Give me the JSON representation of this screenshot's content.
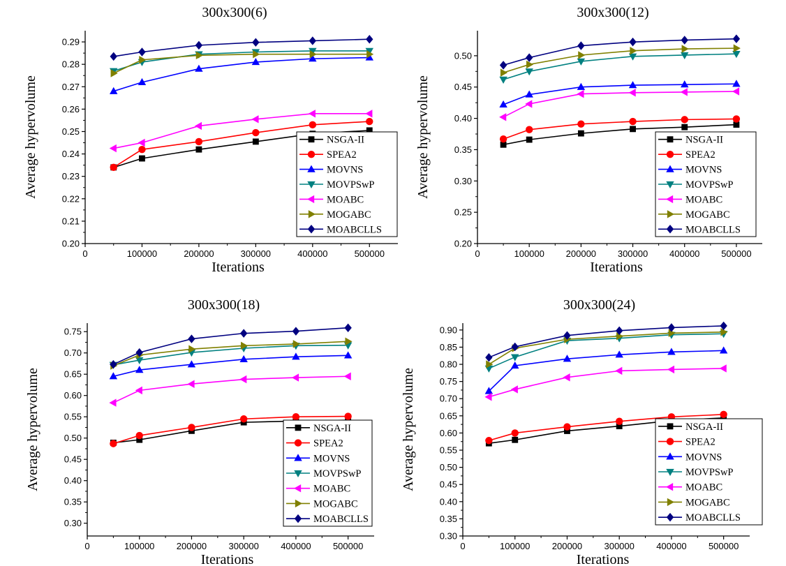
{
  "figure": {
    "title": "",
    "background": "#ffffff"
  },
  "series_styles": [
    {
      "name": "NSGA-II",
      "color": "#000000",
      "marker": "square"
    },
    {
      "name": "SPEA2",
      "color": "#ff0000",
      "marker": "circle"
    },
    {
      "name": "MOVNS",
      "color": "#0000ff",
      "marker": "triangle-up"
    },
    {
      "name": "MOVPSwP",
      "color": "#008080",
      "marker": "triangle-down"
    },
    {
      "name": "MOABC",
      "color": "#ff00ff",
      "marker": "triangle-left"
    },
    {
      "name": "MOGABC",
      "color": "#808000",
      "marker": "triangle-right"
    },
    {
      "name": "MOABCLLS",
      "color": "#000080",
      "marker": "diamond"
    }
  ],
  "chart_data": [
    {
      "type": "line",
      "title": "300x300(6)",
      "xlabel": "Iterations",
      "ylabel": "Average hypervolume",
      "xlim": [
        0,
        550000
      ],
      "ylim": [
        0.2,
        0.295
      ],
      "xticks": [
        0,
        100000,
        200000,
        300000,
        400000,
        500000
      ],
      "yticks": [
        0.2,
        0.21,
        0.22,
        0.23,
        0.24,
        0.25,
        0.26,
        0.27,
        0.28,
        0.29
      ],
      "ydecimals": 2,
      "legend_position": "bottom-right",
      "x": [
        50000,
        100000,
        200000,
        300000,
        400000,
        500000
      ],
      "series": [
        {
          "name": "NSGA-II",
          "values": [
            0.234,
            0.238,
            0.242,
            0.2455,
            0.249,
            0.2505
          ]
        },
        {
          "name": "SPEA2",
          "values": [
            0.234,
            0.242,
            0.2455,
            0.2495,
            0.253,
            0.2545
          ]
        },
        {
          "name": "MOVNS",
          "values": [
            0.268,
            0.272,
            0.278,
            0.281,
            0.2825,
            0.283
          ]
        },
        {
          "name": "MOVPSwP",
          "values": [
            0.277,
            0.281,
            0.2845,
            0.2855,
            0.286,
            0.286
          ]
        },
        {
          "name": "MOABC",
          "values": [
            0.2425,
            0.245,
            0.2525,
            0.2555,
            0.258,
            0.258
          ]
        },
        {
          "name": "MOGABC",
          "values": [
            0.276,
            0.282,
            0.284,
            0.2845,
            0.2845,
            0.2845
          ]
        },
        {
          "name": "MOABCLLS",
          "values": [
            0.2835,
            0.2855,
            0.2885,
            0.2898,
            0.2905,
            0.2912
          ]
        }
      ]
    },
    {
      "type": "line",
      "title": "300x300(12)",
      "xlabel": "Iterations",
      "ylabel": "Average hypervolume",
      "xlim": [
        0,
        550000
      ],
      "ylim": [
        0.2,
        0.54
      ],
      "xticks": [
        0,
        100000,
        200000,
        300000,
        400000,
        500000
      ],
      "yticks": [
        0.2,
        0.25,
        0.3,
        0.35,
        0.4,
        0.45,
        0.5
      ],
      "ydecimals": 2,
      "legend_position": "bottom-right",
      "x": [
        50000,
        100000,
        200000,
        300000,
        400000,
        500000
      ],
      "series": [
        {
          "name": "NSGA-II",
          "values": [
            0.358,
            0.366,
            0.376,
            0.383,
            0.386,
            0.39
          ]
        },
        {
          "name": "SPEA2",
          "values": [
            0.367,
            0.382,
            0.391,
            0.395,
            0.398,
            0.399
          ]
        },
        {
          "name": "MOVNS",
          "values": [
            0.422,
            0.438,
            0.45,
            0.453,
            0.454,
            0.455
          ]
        },
        {
          "name": "MOVPSwP",
          "values": [
            0.462,
            0.475,
            0.491,
            0.499,
            0.501,
            0.503
          ]
        },
        {
          "name": "MOABC",
          "values": [
            0.402,
            0.423,
            0.439,
            0.441,
            0.442,
            0.443
          ]
        },
        {
          "name": "MOGABC",
          "values": [
            0.473,
            0.486,
            0.501,
            0.508,
            0.511,
            0.512
          ]
        },
        {
          "name": "MOABCLLS",
          "values": [
            0.485,
            0.497,
            0.516,
            0.522,
            0.525,
            0.527
          ]
        }
      ]
    },
    {
      "type": "line",
      "title": "300x300(18)",
      "xlabel": "Iterations",
      "ylabel": "Average hypervolume",
      "xlim": [
        0,
        550000
      ],
      "ylim": [
        0.27,
        0.77
      ],
      "xticks": [
        0,
        100000,
        200000,
        300000,
        400000,
        500000
      ],
      "yticks": [
        0.3,
        0.35,
        0.4,
        0.45,
        0.5,
        0.55,
        0.6,
        0.65,
        0.7,
        0.75
      ],
      "ydecimals": 2,
      "legend_position": "bottom-right",
      "x": [
        50000,
        100000,
        200000,
        300000,
        400000,
        500000
      ],
      "series": [
        {
          "name": "NSGA-II",
          "values": [
            0.489,
            0.496,
            0.517,
            0.537,
            0.54,
            0.542
          ]
        },
        {
          "name": "SPEA2",
          "values": [
            0.487,
            0.506,
            0.525,
            0.545,
            0.55,
            0.551
          ]
        },
        {
          "name": "MOVNS",
          "values": [
            0.645,
            0.66,
            0.673,
            0.685,
            0.691,
            0.694
          ]
        },
        {
          "name": "MOVPSwP",
          "values": [
            0.672,
            0.683,
            0.701,
            0.711,
            0.717,
            0.718
          ]
        },
        {
          "name": "MOABC",
          "values": [
            0.583,
            0.612,
            0.627,
            0.638,
            0.642,
            0.645
          ]
        },
        {
          "name": "MOGABC",
          "values": [
            0.67,
            0.695,
            0.709,
            0.717,
            0.721,
            0.727
          ]
        },
        {
          "name": "MOABCLLS",
          "values": [
            0.673,
            0.701,
            0.733,
            0.746,
            0.751,
            0.759
          ]
        }
      ]
    },
    {
      "type": "line",
      "title": "300x300(24)",
      "xlabel": "Iterations",
      "ylabel": "Average hypervolume",
      "xlim": [
        0,
        550000
      ],
      "ylim": [
        0.3,
        0.92
      ],
      "xticks": [
        0,
        100000,
        200000,
        300000,
        400000,
        500000
      ],
      "yticks": [
        0.3,
        0.35,
        0.4,
        0.45,
        0.5,
        0.55,
        0.6,
        0.65,
        0.7,
        0.75,
        0.8,
        0.85,
        0.9
      ],
      "ydecimals": 2,
      "legend_position": "bottom-right",
      "x": [
        50000,
        100000,
        200000,
        300000,
        400000,
        500000
      ],
      "series": [
        {
          "name": "NSGA-II",
          "values": [
            0.57,
            0.58,
            0.606,
            0.62,
            0.636,
            0.644
          ]
        },
        {
          "name": "SPEA2",
          "values": [
            0.578,
            0.6,
            0.618,
            0.634,
            0.647,
            0.654
          ]
        },
        {
          "name": "MOVNS",
          "values": [
            0.722,
            0.796,
            0.816,
            0.828,
            0.836,
            0.84
          ]
        },
        {
          "name": "MOVPSwP",
          "values": [
            0.788,
            0.821,
            0.869,
            0.876,
            0.886,
            0.889
          ]
        },
        {
          "name": "MOABC",
          "values": [
            0.705,
            0.727,
            0.762,
            0.781,
            0.785,
            0.788
          ]
        },
        {
          "name": "MOGABC",
          "values": [
            0.8,
            0.847,
            0.873,
            0.882,
            0.891,
            0.894
          ]
        },
        {
          "name": "MOABCLLS",
          "values": [
            0.82,
            0.851,
            0.884,
            0.898,
            0.907,
            0.912
          ]
        }
      ]
    }
  ]
}
